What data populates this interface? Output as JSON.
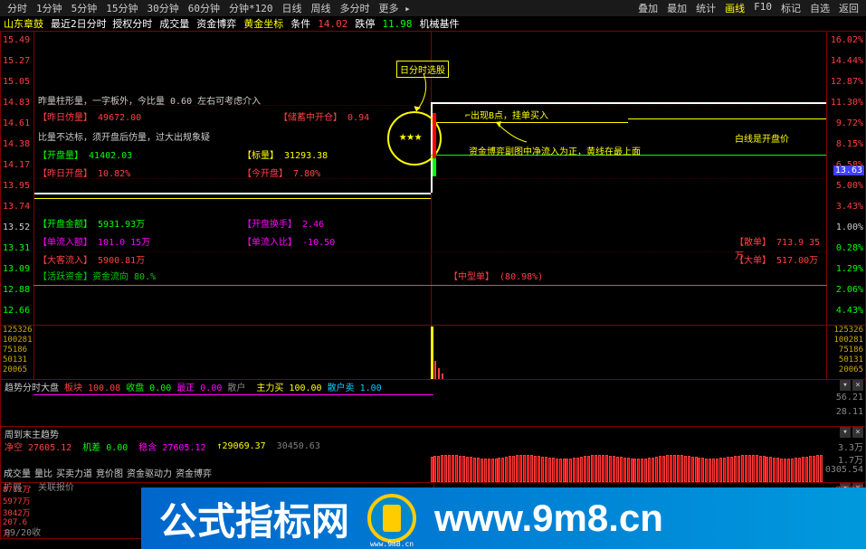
{
  "menu": {
    "items": [
      "分时",
      "1分钟",
      "5分钟",
      "15分钟",
      "30分钟",
      "60分钟",
      "分钟*120",
      "日线",
      "周线",
      "多分时",
      "更多"
    ],
    "right": [
      "叠加",
      "最加",
      "统计",
      "画线",
      "F10",
      "标记",
      "自选",
      "返回"
    ]
  },
  "info": {
    "stock_name": "山东章鼓",
    "period": "最近2日分时 授权分时",
    "vol_label": "成交量",
    "fund_label": "资金博弈",
    "gold_label": "黄金坐标",
    "price_label": "条件",
    "price_val": "14.02",
    "change_label": "跌停",
    "change_val": "11.98",
    "sector": "机械基件"
  },
  "chart": {
    "y_left": [
      "15.49",
      "15.27",
      "15.05",
      "14.83",
      "14.61",
      "14.38",
      "14.17",
      "13.95",
      "13.74",
      "13.52",
      "13.31",
      "13.09",
      "12.88",
      "12.66"
    ],
    "y_left_colors": [
      "#ff4040",
      "#ff4040",
      "#ff4040",
      "#ff4040",
      "#ff4040",
      "#ff4040",
      "#ff4040",
      "#ff4040",
      "#ff4040",
      "#cccccc",
      "#00ff00",
      "#00ff00",
      "#00ff00",
      "#00ff00"
    ],
    "y_right": [
      "16.02%",
      "14.44%",
      "12.87%",
      "11.30%",
      "9.72%",
      "8.15%",
      "6.58%",
      "5.00%",
      "3.43%",
      "1.00%",
      "0.28%",
      "1.29%",
      "2.06%",
      "4.43%"
    ],
    "y_right_colors": [
      "#ff4040",
      "#ff4040",
      "#ff4040",
      "#ff4040",
      "#ff4040",
      "#ff4040",
      "#ff4040",
      "#ff4040",
      "#ff4040",
      "#cccccc",
      "#00ff00",
      "#00ff00",
      "#00ff00",
      "#00ff00"
    ],
    "price_tag": "13.63",
    "annotations": {
      "desc1": "昨量柱形量，一字板外，今比量 0.60 左右可考虑介入",
      "yesterday_vol": "【昨日仿量】",
      "yesterday_vol_val": "49672.00",
      "desc2": "比量不达标，须开盘后仿量，过大出规象疑",
      "kaipan_label": "【开盘量】",
      "kaipan_val": "41402.03",
      "zuori_label": "【昨日开盘】",
      "zuori_val": "10.82%",
      "biaoliang_label": "【标量】",
      "biaoliang_val": "31293.38",
      "jinkai_label": "【今开盘】",
      "jinkai_val": "7.80%",
      "chujian_label": "【储蓄中开仓】",
      "chujian_val": "0.94",
      "kaipan_jine": "【开盘金额】",
      "kaipan_jine_val": "5931.93万",
      "danliu_label": "【单流入额】",
      "danliu_val": "101.0 15万",
      "daliu_label": "【大客流入】",
      "daliu_val": "5900.81万",
      "huoyue_label": "【活跃资金】资金流向",
      "huoyue_val": "80.%",
      "kaipan_huan": "【开盘换手】",
      "kaipan_huan_val": "2.46",
      "danliu_bi": "【单流入比】",
      "danliu_bi_val": "-10.50",
      "zhongxing": "【中型单】",
      "zhongxing_val": "(80.98%)",
      "sanhu_label": "【散单】",
      "sanhu_val": "713.9 35万",
      "dadan_label": "【大单】",
      "dadan_val": "517.00万",
      "today_title": "日分时选股",
      "appear_b": "出现B点，挂单买入",
      "fund_desc": "资金博弈副图中净流入为正，黄线在最上面",
      "white_line": "白线是开盘价"
    }
  },
  "volume": {
    "y_left": [
      "125326",
      "100281",
      "75186",
      "50131",
      "20065"
    ],
    "y_right": [
      "125326",
      "100281",
      "75186",
      "50131",
      "20065"
    ]
  },
  "sub1": {
    "title": "趋势分时大盘",
    "items": [
      {
        "label": "板块",
        "val": "100.08",
        "color": "#ff4040"
      },
      {
        "label": "收盘",
        "val": "0.00",
        "color": "#00ff00"
      },
      {
        "label": "最正",
        "val": "0.00",
        "color": "#ff00ff"
      },
      {
        "label": "散户",
        "val": "",
        "color": "#888888"
      },
      {
        "label": "主力买",
        "val": "100.00",
        "color": "#ffff00"
      },
      {
        "label": "散户卖",
        "val": "1.00",
        "color": "#00ccff"
      }
    ],
    "y_right": [
      "56.21",
      "28.11"
    ]
  },
  "sub2": {
    "title": "周到末主趋势",
    "line2": [
      {
        "label": "净空",
        "val": "27605.12",
        "color": "#ff4040"
      },
      {
        "label": "机差",
        "val": "0.00",
        "color": "#00ff00"
      },
      {
        "label": "稳含",
        "val": "27605.12",
        "color": "#ff00ff"
      },
      {
        "label": "",
        "val": "↑29069.37",
        "color": "#ffff00"
      },
      {
        "label": "",
        "val": "30450.63",
        "color": "#808080"
      }
    ],
    "y_right": [
      "3.3万",
      "1.7万",
      "0305.54"
    ]
  },
  "bottom": {
    "y_left": [
      "8712万",
      "5977万",
      "3042万",
      "207.6万"
    ],
    "y_right": [
      "8712万"
    ],
    "date": "09/20收"
  },
  "footer": {
    "tabs": [
      "成交量",
      "量比",
      "买卖力道",
      "竞价图",
      "资金驱动力",
      "资金博弈"
    ],
    "line2": "扩展 · 关联报价"
  },
  "watermark": {
    "text": "公式指标网",
    "url": "www.9m8.cn",
    "sub": "www.9m8.cn"
  }
}
